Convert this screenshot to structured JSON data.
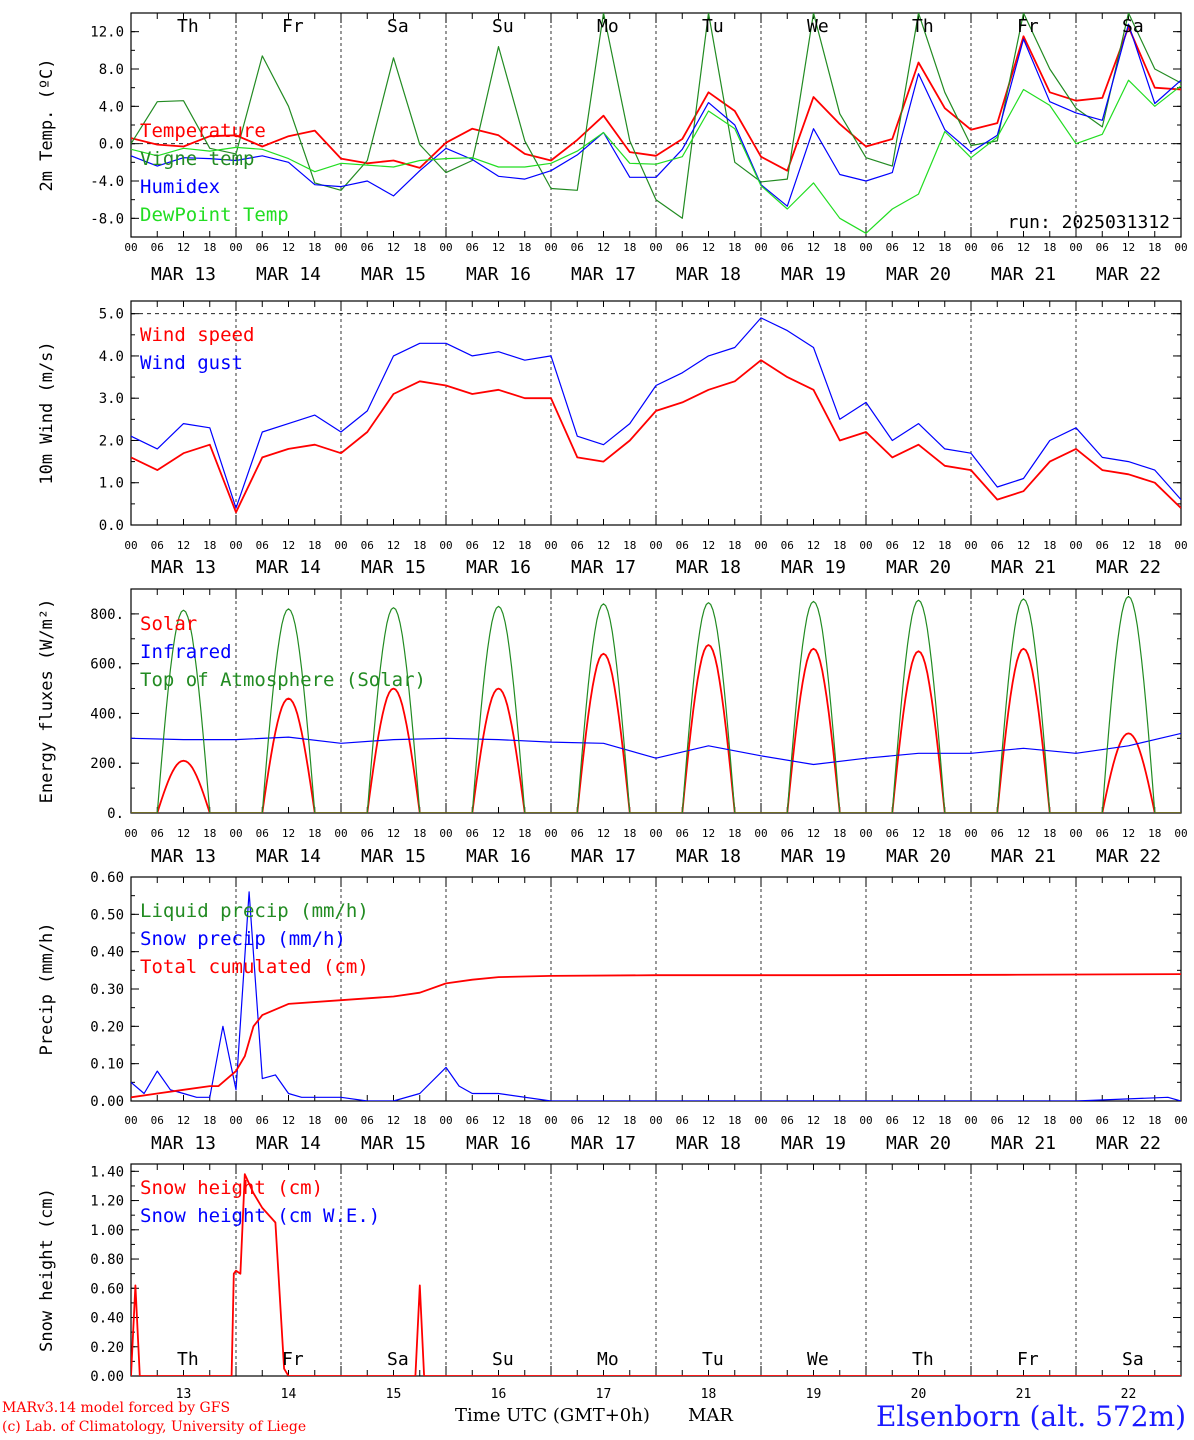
{
  "run_label": "run: 2025031312",
  "station": "Elsenborn (alt. 572m)",
  "credits": [
    "MARv3.14 model forced by GFS",
    "(c) Lab. of Climatology, University of Liege"
  ],
  "xaxis": {
    "title": "Time UTC (GMT+0h)",
    "unit": "MAR",
    "hour_ticks": [
      "00",
      "06",
      "12",
      "18",
      "00",
      "06",
      "12",
      "18",
      "00",
      "06",
      "12",
      "18",
      "00",
      "06",
      "12",
      "18",
      "00",
      "06",
      "12",
      "18",
      "00",
      "06",
      "12",
      "18",
      "00",
      "06",
      "12",
      "18",
      "00",
      "06",
      "12",
      "18",
      "00",
      "06",
      "12",
      "18",
      "00",
      "06",
      "12",
      "18",
      "00"
    ],
    "date_labels": [
      "MAR 13",
      "MAR 14",
      "MAR 15",
      "MAR 16",
      "MAR 17",
      "MAR 18",
      "MAR 19",
      "MAR 20",
      "MAR 21",
      "MAR 22"
    ],
    "day_numbers": [
      "13",
      "14",
      "15",
      "16",
      "17",
      "18",
      "19",
      "20",
      "21",
      "22"
    ],
    "weekdays": [
      "Th",
      "Fr",
      "Sa",
      "Su",
      "Mo",
      "Tu",
      "We",
      "Th",
      "Fr",
      "Sa"
    ],
    "weekday_colors": [
      "#000000",
      "#000000",
      "#ff0000",
      "#ff0000",
      "#000000",
      "#000000",
      "#000000",
      "#000000",
      "#000000",
      "#ff0000"
    ]
  },
  "colors": {
    "red": "#ff0000",
    "green": "#228b22",
    "blue": "#0000ff",
    "lightgreen": "#22dd22",
    "ink": "#000000"
  },
  "chart_data": [
    {
      "type": "line",
      "ylabel": "2m Temp. (ºC)",
      "ylim": [
        -10,
        14
      ],
      "yticks": [
        -8,
        -4,
        0,
        4,
        8,
        12
      ],
      "ytick_labels": [
        "-8.0",
        "-4.0",
        "0.0",
        "4.0",
        "8.0",
        "12.0"
      ],
      "reference_line": 0,
      "x_hours": [
        0,
        6,
        12,
        18,
        24,
        30,
        36,
        42,
        48,
        54,
        60,
        66,
        72,
        78,
        84,
        90,
        96,
        102,
        108,
        114,
        120,
        126,
        132,
        138,
        144,
        150,
        156,
        162,
        168,
        174,
        180,
        186,
        192,
        198,
        204,
        210,
        216,
        222,
        228,
        234,
        240
      ],
      "series": [
        {
          "name": "Temperature",
          "color": "#ff0000",
          "values": [
            0.6,
            -0.1,
            -0.3,
            0.8,
            0.9,
            -0.3,
            0.8,
            1.4,
            -1.6,
            -2.1,
            -1.8,
            -2.6,
            0.1,
            1.6,
            0.9,
            -1.1,
            -1.8,
            0.4,
            3.0,
            -0.9,
            -1.3,
            0.5,
            5.5,
            3.5,
            -1.4,
            -2.9,
            5.0,
            2.1,
            -0.3,
            0.5,
            8.7,
            3.8,
            1.5,
            2.2,
            11.5,
            5.5,
            4.6,
            4.9,
            12.5,
            6.0,
            5.8
          ]
        },
        {
          "name": "Vigne temp",
          "color": "#228b22",
          "values": [
            0.0,
            4.5,
            4.6,
            -0.5,
            -1.1,
            9.4,
            4.0,
            -4.2,
            -5.0,
            -1.8,
            9.2,
            -0.1,
            -3.1,
            -1.8,
            10.4,
            0.3,
            -4.8,
            -5.0,
            14.0,
            0.3,
            -6.0,
            -8.0,
            14.0,
            -2.0,
            -4.1,
            -3.8,
            14.0,
            3.2,
            -1.5,
            -2.4,
            14.0,
            5.5,
            -0.2,
            0.3,
            14.0,
            8.0,
            3.8,
            1.8,
            14.0,
            8.0,
            6.5
          ]
        },
        {
          "name": "Humidex",
          "color": "#0000ff",
          "values": [
            -1.3,
            -2.4,
            -1.5,
            -1.6,
            -1.8,
            -1.3,
            -2.0,
            -4.4,
            -4.6,
            -4.0,
            -5.6,
            -2.9,
            -0.5,
            -1.7,
            -3.5,
            -3.8,
            -2.9,
            -1.2,
            1.2,
            -3.6,
            -3.6,
            -0.6,
            4.4,
            2.0,
            -4.4,
            -6.7,
            1.6,
            -3.3,
            -4.0,
            -3.1,
            7.5,
            1.5,
            -0.9,
            0.9,
            11.2,
            4.5,
            3.3,
            2.5,
            12.8,
            4.3,
            6.8
          ]
        },
        {
          "name": "DewPoint Temp",
          "color": "#22dd22",
          "values": [
            -0.6,
            -1.3,
            -0.5,
            -0.8,
            -0.4,
            -0.6,
            -1.6,
            -3.0,
            -2.1,
            -2.3,
            -2.5,
            -1.8,
            -1.6,
            -1.5,
            -2.5,
            -2.5,
            -2.1,
            -0.8,
            1.2,
            -2.1,
            -2.2,
            -1.4,
            3.5,
            1.6,
            -4.5,
            -7.0,
            -4.2,
            -8.0,
            -9.6,
            -7.0,
            -5.4,
            1.3,
            -1.5,
            0.7,
            5.8,
            4.1,
            0.0,
            1.0,
            6.8,
            4.0,
            6.2
          ]
        }
      ]
    },
    {
      "type": "line",
      "ylabel": "10m Wind (m/s)",
      "ylim": [
        0,
        5.3
      ],
      "yticks": [
        0,
        1,
        2,
        3,
        4,
        5
      ],
      "ytick_labels": [
        "0.0",
        "1.0",
        "2.0",
        "3.0",
        "4.0",
        "5.0"
      ],
      "reference_line": 5,
      "x_hours": [
        0,
        6,
        12,
        18,
        24,
        30,
        36,
        42,
        48,
        54,
        60,
        66,
        72,
        78,
        84,
        90,
        96,
        102,
        108,
        114,
        120,
        126,
        132,
        138,
        144,
        150,
        156,
        162,
        168,
        174,
        180,
        186,
        192,
        198,
        204,
        210,
        216,
        222,
        228,
        234,
        240
      ],
      "series": [
        {
          "name": "Wind speed",
          "color": "#ff0000",
          "values": [
            1.6,
            1.3,
            1.7,
            1.9,
            0.3,
            1.6,
            1.8,
            1.9,
            1.7,
            2.2,
            3.1,
            3.4,
            3.3,
            3.1,
            3.2,
            3.0,
            3.0,
            1.6,
            1.5,
            2.0,
            2.7,
            2.9,
            3.2,
            3.4,
            3.9,
            3.5,
            3.2,
            2.0,
            2.2,
            1.6,
            1.9,
            1.4,
            1.3,
            0.6,
            0.8,
            1.5,
            1.8,
            1.3,
            1.2,
            1.0,
            0.4
          ]
        },
        {
          "name": "Wind gust",
          "color": "#0000ff",
          "values": [
            2.1,
            1.8,
            2.4,
            2.3,
            0.4,
            2.2,
            2.4,
            2.6,
            2.2,
            2.7,
            4.0,
            4.3,
            4.3,
            4.0,
            4.1,
            3.9,
            4.0,
            2.1,
            1.9,
            2.4,
            3.3,
            3.6,
            4.0,
            4.2,
            4.9,
            4.6,
            4.2,
            2.5,
            2.9,
            2.0,
            2.4,
            1.8,
            1.7,
            0.9,
            1.1,
            2.0,
            2.3,
            1.6,
            1.5,
            1.3,
            0.6
          ]
        }
      ]
    },
    {
      "type": "line",
      "ylabel": "Energy fluxes (W/m²)",
      "ylim": [
        0,
        900
      ],
      "yticks": [
        0,
        200,
        400,
        600,
        800
      ],
      "ytick_labels": [
        "0.",
        "200.",
        "400.",
        "600.",
        "800."
      ],
      "sun_window_hours": [
        6,
        18
      ],
      "series": [
        {
          "name": "Solar",
          "color": "#ff0000",
          "daily_peaks": [
            210,
            460,
            500,
            500,
            640,
            675,
            660,
            650,
            660,
            320
          ]
        },
        {
          "name": "Infrared",
          "color": "#0000ff",
          "x_hours": [
            0,
            12,
            24,
            36,
            48,
            60,
            72,
            84,
            96,
            108,
            120,
            132,
            144,
            156,
            168,
            180,
            192,
            204,
            216,
            228,
            240
          ],
          "values": [
            300,
            295,
            295,
            305,
            280,
            295,
            300,
            295,
            285,
            280,
            220,
            270,
            230,
            195,
            220,
            240,
            240,
            260,
            240,
            270,
            320
          ]
        },
        {
          "name": "Top of Atmosphere (Solar)",
          "color": "#228b22",
          "daily_peaks": [
            815,
            820,
            825,
            830,
            840,
            845,
            850,
            855,
            860,
            870
          ]
        }
      ]
    },
    {
      "type": "line",
      "ylabel": "Precip (mm/h)",
      "ylim": [
        0,
        0.6
      ],
      "yticks": [
        0,
        0.1,
        0.2,
        0.3,
        0.4,
        0.5,
        0.6
      ],
      "ytick_labels": [
        "0.00",
        "0.10",
        "0.20",
        "0.30",
        "0.40",
        "0.50",
        "0.60"
      ],
      "series": [
        {
          "name": "Liquid precip (mm/h)",
          "color": "#228b22",
          "x_hours": [],
          "values": []
        },
        {
          "name": "Snow precip (mm/h)",
          "color": "#0000ff",
          "x_hours": [
            0,
            3,
            6,
            9,
            12,
            15,
            18,
            21,
            24,
            27,
            30,
            33,
            36,
            39,
            42,
            45,
            48,
            54,
            60,
            66,
            72,
            75,
            78,
            84,
            96,
            120,
            144,
            180,
            216,
            237,
            240
          ],
          "values": [
            0.05,
            0.02,
            0.08,
            0.03,
            0.02,
            0.01,
            0.01,
            0.2,
            0.03,
            0.56,
            0.06,
            0.07,
            0.02,
            0.01,
            0.01,
            0.01,
            0.01,
            0.0,
            0.0,
            0.02,
            0.09,
            0.04,
            0.02,
            0.02,
            0.0,
            0.0,
            0.0,
            0.0,
            0.0,
            0.01,
            0.0
          ]
        },
        {
          "name": "Total cumulated (cm)",
          "color": "#ff0000",
          "x_hours": [
            0,
            6,
            12,
            18,
            20,
            24,
            26,
            28,
            30,
            36,
            48,
            60,
            66,
            72,
            78,
            84,
            96,
            120,
            160,
            200,
            240
          ],
          "values": [
            0.01,
            0.02,
            0.03,
            0.04,
            0.04,
            0.08,
            0.12,
            0.2,
            0.23,
            0.26,
            0.27,
            0.28,
            0.29,
            0.315,
            0.325,
            0.332,
            0.335,
            0.337,
            0.337,
            0.338,
            0.34
          ]
        }
      ]
    },
    {
      "type": "line",
      "ylabel": "Snow height (cm)",
      "ylim": [
        0,
        1.45
      ],
      "yticks": [
        0,
        0.2,
        0.4,
        0.6,
        0.8,
        1.0,
        1.2,
        1.4
      ],
      "ytick_labels": [
        "0.00",
        "0.20",
        "0.40",
        "0.60",
        "0.80",
        "1.00",
        "1.20",
        "1.40"
      ],
      "series": [
        {
          "name": "Snow height (cm)",
          "color": "#ff0000",
          "x_hours": [
            0,
            1,
            2,
            23,
            23.5,
            24,
            25,
            26,
            28,
            30,
            33,
            35,
            36,
            37,
            65,
            66,
            67,
            240
          ],
          "values": [
            0,
            0.62,
            0,
            0,
            0.7,
            0.72,
            0.7,
            1.38,
            1.25,
            1.15,
            1.05,
            0.05,
            0,
            0,
            0,
            0.62,
            0,
            0
          ]
        },
        {
          "name": "Snow height (cm W.E.)",
          "color": "#0000ff",
          "x_hours": [],
          "values": []
        }
      ]
    }
  ]
}
